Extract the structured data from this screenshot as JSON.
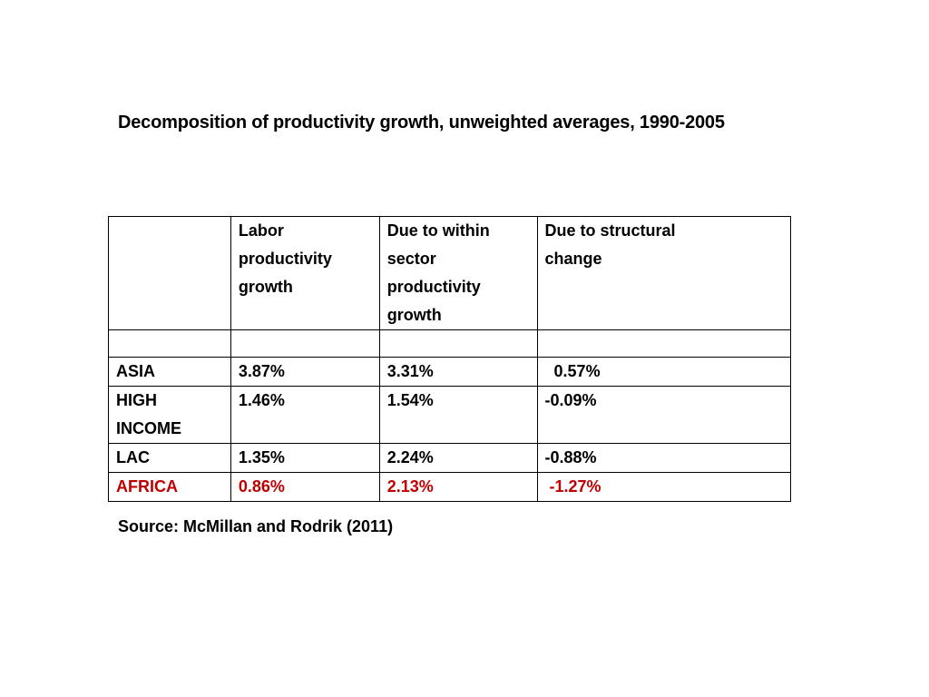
{
  "slide": {
    "title": "Decomposition of productivity growth, unweighted averages, 1990-2005",
    "source": "Source: McMillan and Rodrik (2011)"
  },
  "table": {
    "headers": [
      "",
      "Labor\nproductivity\ngrowth",
      "Due to within\nsector\nproductivity\ngrowth",
      "Due to structural\nchange"
    ],
    "rows": [
      {
        "region": "ASIA",
        "labor": "3.87%",
        "within": "3.31%",
        "structural": "  0.57%",
        "highlight": false
      },
      {
        "region": "HIGH\nINCOME",
        "labor": "1.46%",
        "within": "1.54%",
        "structural": "-0.09%",
        "highlight": false
      },
      {
        "region": "LAC",
        "labor": "1.35%",
        "within": "2.24%",
        "structural": "-0.88%",
        "highlight": false
      },
      {
        "region": "AFRICA",
        "labor": "0.86%",
        "within": "2.13%",
        "structural": " -1.27%",
        "highlight": true
      }
    ],
    "highlight_color": "#c00000"
  }
}
